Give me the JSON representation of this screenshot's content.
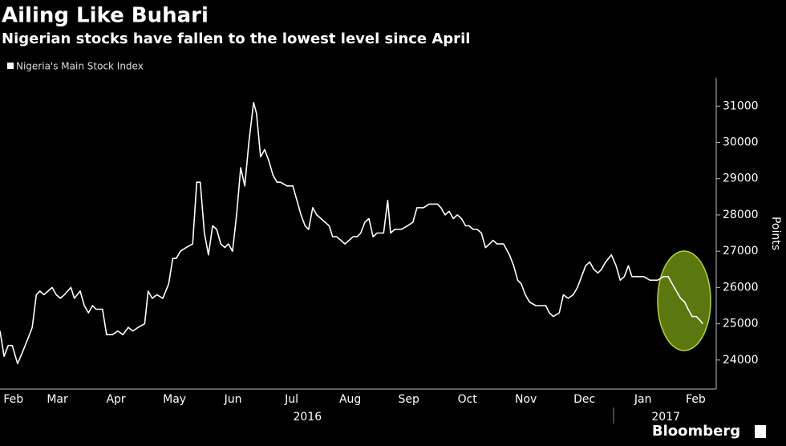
{
  "chart_data": {
    "type": "line",
    "title": "Ailing Like Buhari",
    "subtitle": "Nigerian stocks have fallen to the lowest level since April",
    "y_label": "Points",
    "source": "Bloomberg",
    "x": [
      1.52,
      1.59,
      1.66,
      1.73,
      1.82,
      1.9,
      2.0,
      2.07,
      2.14,
      2.2,
      2.27,
      2.34,
      2.41,
      2.48,
      2.55,
      2.62,
      2.73,
      2.79,
      2.89,
      2.96,
      3.03,
      3.1,
      3.16,
      3.27,
      3.34,
      3.44,
      3.53,
      3.62,
      3.71,
      3.79,
      3.88,
      3.99,
      4.05,
      4.12,
      4.2,
      4.3,
      4.4,
      4.47,
      4.53,
      4.6,
      4.7,
      4.81,
      4.88,
      4.94,
      5.01,
      5.08,
      5.15,
      5.22,
      5.29,
      5.36,
      5.42,
      5.49,
      5.56,
      5.63,
      5.7,
      5.77,
      5.85,
      5.9,
      5.97,
      6.04,
      6.11,
      6.18,
      6.25,
      6.31,
      6.42,
      6.52,
      6.59,
      6.66,
      6.73,
      6.79,
      6.86,
      6.93,
      7.0,
      7.14,
      7.2,
      7.27,
      7.34,
      7.41,
      7.48,
      7.55,
      7.62,
      7.68,
      7.75,
      7.82,
      7.89,
      7.96,
      8.07,
      8.14,
      8.19,
      8.26,
      8.37,
      8.48,
      8.57,
      8.64,
      8.75,
      8.85,
      8.99,
      9.05,
      9.12,
      9.19,
      9.26,
      9.33,
      9.4,
      9.47,
      9.53,
      9.6,
      9.67,
      9.74,
      9.81,
      9.88,
      9.94,
      10.01,
      10.12,
      10.22,
      10.29,
      10.36,
      10.42,
      10.49,
      10.56,
      10.67,
      10.77,
      10.84,
      10.9,
      10.97,
      11.07,
      11.14,
      11.22,
      11.31,
      11.38,
      11.45,
      11.52,
      11.59,
      11.66,
      11.73,
      11.79,
      11.86,
      11.96,
      12.04,
      12.11,
      12.18,
      12.25,
      12.31,
      12.41,
      12.51,
      12.62,
      12.75,
      12.85,
      12.93,
      13.0,
      13.07,
      13.14,
      13.21,
      13.27,
      13.34,
      13.41,
      13.47,
      13.52
    ],
    "series": [
      {
        "name": "Nigeria's Main Stock Index",
        "color": "#ffffff",
        "values": [
          24800,
          24100,
          24400,
          24400,
          23900,
          24200,
          24600,
          24900,
          25800,
          25900,
          25800,
          25900,
          26000,
          25800,
          25700,
          25800,
          26000,
          25700,
          25900,
          25500,
          25300,
          25500,
          25400,
          25400,
          24700,
          24700,
          24800,
          24700,
          24900,
          24800,
          24900,
          25000,
          25900,
          25700,
          25800,
          25700,
          26100,
          26800,
          26800,
          27000,
          27100,
          27200,
          28900,
          28900,
          27500,
          26900,
          27700,
          27600,
          27200,
          27100,
          27200,
          27000,
          28000,
          29300,
          28800,
          30000,
          31100,
          30800,
          29600,
          29800,
          29500,
          29100,
          28900,
          28900,
          28800,
          28800,
          28400,
          28000,
          27700,
          27600,
          28200,
          28000,
          27900,
          27700,
          27400,
          27400,
          27300,
          27200,
          27300,
          27400,
          27400,
          27500,
          27800,
          27900,
          27400,
          27500,
          27500,
          28400,
          27500,
          27600,
          27600,
          27700,
          27800,
          28200,
          28200,
          28300,
          28300,
          28200,
          28000,
          28100,
          27900,
          28000,
          27900,
          27700,
          27700,
          27600,
          27600,
          27500,
          27100,
          27200,
          27300,
          27200,
          27200,
          26900,
          26600,
          26200,
          26100,
          25800,
          25600,
          25500,
          25500,
          25500,
          25300,
          25200,
          25300,
          25800,
          25700,
          25800,
          26000,
          26300,
          26600,
          26700,
          26500,
          26400,
          26500,
          26700,
          26900,
          26600,
          26200,
          26300,
          26600,
          26300,
          26300,
          26300,
          26200,
          26200,
          26300,
          26300,
          26100,
          25900,
          25700,
          25600,
          25400,
          25200,
          25200,
          25100,
          25000
        ]
      }
    ],
    "xlim": [
      1.52,
      13.75
    ],
    "xticks": [
      {
        "value": 1.75,
        "label": "Feb"
      },
      {
        "value": 2.5,
        "label": "Mar"
      },
      {
        "value": 3.5,
        "label": "Apr"
      },
      {
        "value": 4.5,
        "label": "May"
      },
      {
        "value": 5.5,
        "label": "Jun"
      },
      {
        "value": 6.5,
        "label": "Jul"
      },
      {
        "value": 7.5,
        "label": "Aug"
      },
      {
        "value": 8.5,
        "label": "Sep"
      },
      {
        "value": 9.5,
        "label": "Oct"
      },
      {
        "value": 10.5,
        "label": "Nov"
      },
      {
        "value": 11.5,
        "label": "Dec"
      },
      {
        "value": 12.5,
        "label": "Jan"
      },
      {
        "value": 13.4,
        "label": "Feb"
      }
    ],
    "x_groups": [
      {
        "value": 6.77,
        "label": "2016"
      },
      {
        "value": 12.89,
        "label": "2017"
      }
    ],
    "ylim": [
      23200,
      31780
    ],
    "yticks": [
      24000,
      25000,
      26000,
      27000,
      28000,
      29000,
      30000,
      31000
    ],
    "grid": false
  }
}
